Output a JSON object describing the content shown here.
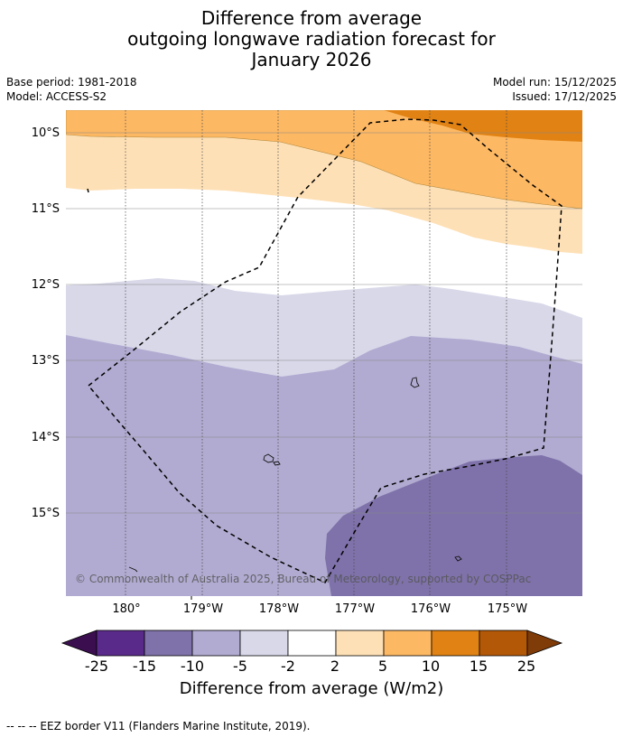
{
  "title": {
    "line1": "Difference from average",
    "line2": "outgoing longwave radiation forecast for",
    "line3": "January 2026"
  },
  "meta": {
    "base_period": "Base period: 1981-2018",
    "model": "Model: ACCESS-S2",
    "model_run": "Model run: 15/12/2025",
    "issued": "Issued: 17/12/2025"
  },
  "map": {
    "lat_labels": [
      "10°S",
      "11°S",
      "12°S",
      "13°S",
      "14°S",
      "15°S"
    ],
    "lon_labels": [
      "180°",
      "179°W",
      "178°W",
      "177°W",
      "176°W",
      "175°W"
    ],
    "copyright": "© Commonwealth of Australia 2025, Bureau of Meteorology, supported by COSPPac",
    "border_style": "dashed"
  },
  "colorbar": {
    "ticks": [
      "-25",
      "-15",
      "-10",
      "-5",
      "-2",
      "2",
      "5",
      "10",
      "15",
      "25"
    ],
    "colors": [
      "#3b0f4f",
      "#5a2a8a",
      "#7f72aa",
      "#b1abd1",
      "#d8d8e9",
      "#ffffff",
      "#fee0b6",
      "#fdb863",
      "#e08214",
      "#b35806",
      "#7f3b08"
    ],
    "label": "Difference from average (W/m2)"
  },
  "footnote": "--  --  -- EEZ border V11 (Flanders Marine Institute, 2019)."
}
